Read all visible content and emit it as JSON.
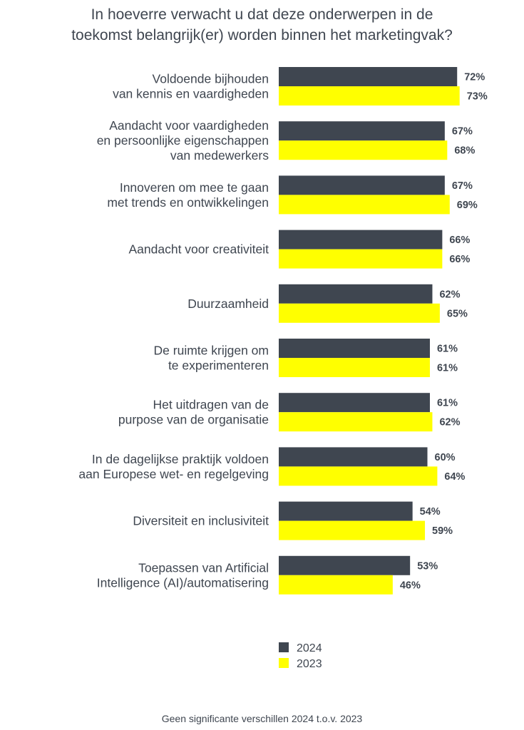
{
  "chart_data": {
    "type": "bar",
    "orientation": "horizontal",
    "title_lines": [
      "In hoeverre verwacht u dat deze onderwerpen in de",
      "toekomst belangrijk(er) worden binnen het marketingvak?"
    ],
    "categories": [
      [
        "Voldoende bijhouden",
        "van kennis en vaardigheden"
      ],
      [
        "Aandacht voor vaardigheden",
        "en persoonlijke eigenschappen",
        "van medewerkers"
      ],
      [
        "Innoveren om mee te gaan",
        "met trends en ontwikkelingen"
      ],
      [
        "Aandacht voor creativiteit"
      ],
      [
        "Duurzaamheid"
      ],
      [
        "De ruimte krijgen om",
        "te experimenteren"
      ],
      [
        "Het uitdragen van de",
        "purpose van de organisatie"
      ],
      [
        "In de dagelijkse praktijk voldoen",
        "aan Europese wet- en regelgeving"
      ],
      [
        "Diversiteit en inclusiviteit"
      ],
      [
        "Toepassen van Artificial",
        "Intelligence (AI)/automatisering"
      ]
    ],
    "series": [
      {
        "name": "2024",
        "color": "#3f4650",
        "values": [
          72,
          67,
          67,
          66,
          62,
          61,
          61,
          60,
          54,
          53
        ]
      },
      {
        "name": "2023",
        "color": "#ffff00",
        "values": [
          73,
          68,
          69,
          66,
          65,
          61,
          62,
          64,
          59,
          46
        ]
      }
    ],
    "value_suffix": "%",
    "xlim": [
      0,
      100
    ],
    "legend_position": "bottom",
    "grid": false,
    "footnote": "Geen significante verschillen 2024 t.o.v. 2023"
  }
}
